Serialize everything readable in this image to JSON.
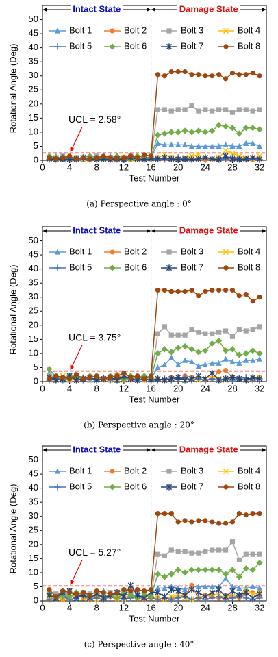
{
  "chart_data": [
    {
      "type": "line",
      "caption": "(a) Perspective angle : 0°",
      "xlabel": "Test Number",
      "ylabel": "Rotational Angle (Deg)",
      "intact_label": "Intact State",
      "damage_label": "Damage State",
      "state_boundary": 16,
      "ucl": 2.58,
      "ucl_label": "UCL = 2.58°",
      "xlim": [
        0,
        33
      ],
      "xticks": [
        0,
        4,
        8,
        12,
        16,
        20,
        24,
        28,
        32
      ],
      "ylim": [
        0,
        55
      ],
      "yticks": [
        0,
        5,
        10,
        15,
        20,
        25,
        30,
        35,
        40,
        45,
        50
      ],
      "x": [
        1,
        2,
        3,
        4,
        5,
        6,
        7,
        8,
        9,
        10,
        11,
        12,
        13,
        14,
        15,
        16,
        17,
        18,
        19,
        20,
        21,
        22,
        23,
        24,
        25,
        26,
        27,
        28,
        29,
        30,
        31,
        32
      ],
      "series": [
        {
          "name": "Bolt 1",
          "color": "#5b9bd5",
          "marker": "triangle",
          "values": [
            1,
            1.5,
            0.5,
            1,
            0.5,
            0.3,
            1,
            0.5,
            1,
            1.5,
            0.5,
            1,
            1.5,
            1,
            0.5,
            1,
            6,
            5.5,
            5.5,
            5.5,
            5.5,
            5,
            5,
            5,
            5,
            5,
            5.5,
            5,
            5,
            6,
            6,
            5
          ]
        },
        {
          "name": "Bolt 2",
          "color": "#ed7d31",
          "marker": "circle",
          "values": [
            0.5,
            1,
            0.3,
            0.5,
            1,
            0.5,
            0.3,
            1,
            0.5,
            0.3,
            1,
            0.5,
            0.3,
            0.5,
            1,
            0.5,
            1,
            0.5,
            1,
            0.5,
            0.3,
            1,
            0.5,
            0.3,
            0.5,
            1,
            0.5,
            0.3,
            1,
            0.5,
            0.3,
            0.5
          ]
        },
        {
          "name": "Bolt 3",
          "color": "#a5a5a5",
          "marker": "square",
          "values": [
            1,
            0.5,
            1.5,
            0.5,
            1,
            0.5,
            1,
            1.5,
            0.5,
            1,
            0.5,
            1,
            1.5,
            1,
            0.5,
            1.5,
            18,
            18,
            17.5,
            18,
            18,
            19.5,
            17.5,
            18,
            17.5,
            18,
            18,
            17,
            18,
            18,
            17.5,
            18
          ]
        },
        {
          "name": "Bolt 4",
          "color": "#ffc000",
          "marker": "x",
          "values": [
            0.5,
            1,
            0.5,
            1,
            0.3,
            0.5,
            1,
            0.5,
            0.3,
            1,
            0.5,
            1,
            0.5,
            0.3,
            1,
            0.5,
            1,
            2,
            1,
            0.5,
            1,
            1.5,
            2,
            1,
            0.5,
            1,
            3.5,
            2.5,
            1.5,
            1,
            0.5,
            1.5
          ]
        },
        {
          "name": "Bolt 5",
          "color": "#4472c4",
          "marker": "plus",
          "values": [
            0.3,
            0.5,
            1,
            0.5,
            0.3,
            0.5,
            0.3,
            0.5,
            1,
            0.5,
            0.3,
            0.5,
            1,
            0.5,
            0.3,
            0.5,
            0.5,
            0.3,
            0.5,
            1,
            0.5,
            0.3,
            0.5,
            1,
            0.5,
            0.3,
            0.5,
            1,
            0.5,
            0.3,
            0.5,
            0.3
          ]
        },
        {
          "name": "Bolt 6",
          "color": "#70ad47",
          "marker": "diamond",
          "values": [
            1.5,
            1,
            0.5,
            1,
            0.5,
            1,
            1.5,
            1,
            0.5,
            1,
            1.5,
            1,
            0.5,
            1.5,
            1,
            1,
            9,
            9.5,
            10,
            10,
            10.5,
            10,
            10.5,
            10,
            10.5,
            12.5,
            12,
            11.5,
            9.5,
            11.5,
            11.5,
            11
          ]
        },
        {
          "name": "Bolt 7",
          "color": "#264478",
          "marker": "asterisk",
          "values": [
            0.5,
            0.3,
            0.5,
            0.3,
            0.5,
            1,
            0.5,
            0.3,
            0.5,
            0.3,
            0.5,
            0.3,
            1,
            0.5,
            0.3,
            0.5,
            0.5,
            1,
            0.5,
            0.3,
            0.5,
            0.3,
            0.5,
            1,
            0.5,
            0.3,
            1.5,
            0.5,
            0.3,
            0.5,
            1,
            0.5
          ]
        },
        {
          "name": "Bolt 8",
          "color": "#9e480e",
          "marker": "circle",
          "values": [
            1,
            0.5,
            1,
            1.5,
            0.5,
            1,
            0.5,
            1,
            1.5,
            1,
            0.5,
            1,
            1.5,
            1,
            2,
            1.5,
            30.5,
            30,
            31.5,
            31.5,
            31.5,
            30.5,
            30.5,
            30,
            30,
            30.5,
            29,
            31,
            30.5,
            30.5,
            31,
            30
          ]
        }
      ]
    },
    {
      "type": "line",
      "caption": "(b) Perspective angle : 20°",
      "xlabel": "Test Number",
      "ylabel": "Rotational Angle (Deg)",
      "intact_label": "Intact State",
      "damage_label": "Damage State",
      "state_boundary": 16,
      "ucl": 3.75,
      "ucl_label": "UCL = 3.75°",
      "xlim": [
        0,
        33
      ],
      "xticks": [
        0,
        4,
        8,
        12,
        16,
        20,
        24,
        28,
        32
      ],
      "ylim": [
        0,
        55
      ],
      "yticks": [
        0,
        5,
        10,
        15,
        20,
        25,
        30,
        35,
        40,
        45,
        50
      ],
      "x": [
        1,
        2,
        3,
        4,
        5,
        6,
        7,
        8,
        9,
        10,
        11,
        12,
        13,
        14,
        15,
        16,
        17,
        18,
        19,
        20,
        21,
        22,
        23,
        24,
        25,
        26,
        27,
        28,
        29,
        30,
        31,
        32
      ],
      "series": [
        {
          "name": "Bolt 1",
          "color": "#5b9bd5",
          "marker": "triangle",
          "values": [
            3,
            1.5,
            0.5,
            1,
            2,
            1.5,
            0.5,
            1,
            1.5,
            1,
            0.5,
            1,
            1.5,
            1,
            2,
            1,
            5,
            6,
            8.5,
            6,
            7.5,
            7,
            5.5,
            6,
            6.5,
            6.5,
            8,
            7,
            6.5,
            7.5,
            7.5,
            8
          ]
        },
        {
          "name": "Bolt 2",
          "color": "#ed7d31",
          "marker": "circle",
          "values": [
            1,
            0.5,
            1.5,
            1,
            0.5,
            1,
            0.5,
            1,
            0.5,
            1,
            2.5,
            1,
            0.5,
            1,
            0.5,
            1,
            1,
            0.5,
            1.5,
            1,
            2,
            1.5,
            1,
            0.5,
            1,
            3.5,
            4,
            1.5,
            1,
            0.5,
            1,
            1.5
          ]
        },
        {
          "name": "Bolt 3",
          "color": "#a5a5a5",
          "marker": "square",
          "values": [
            2,
            1.5,
            1,
            0.5,
            2,
            1,
            0.5,
            1.5,
            1,
            0.5,
            1,
            2,
            1,
            0.5,
            1,
            1.5,
            17,
            19.5,
            16.5,
            16.5,
            16.5,
            18.5,
            17.5,
            17,
            17,
            17.5,
            18,
            16,
            18.5,
            18,
            18.5,
            19.5
          ]
        },
        {
          "name": "Bolt 4",
          "color": "#ffc000",
          "marker": "x",
          "values": [
            1,
            0.5,
            2,
            1,
            0.5,
            1,
            1.5,
            0.5,
            1,
            0.5,
            1,
            0.5,
            1,
            1.5,
            0.5,
            1,
            1,
            0.5,
            1,
            1.5,
            0.5,
            1,
            0.5,
            1,
            2,
            1,
            0.5,
            1.5,
            1,
            0.5,
            1,
            1.5
          ]
        },
        {
          "name": "Bolt 5",
          "color": "#4472c4",
          "marker": "plus",
          "values": [
            0.5,
            1,
            0.5,
            1.5,
            1,
            0.5,
            1,
            0.5,
            1,
            0.5,
            1,
            1.5,
            1,
            0.5,
            1,
            0.5,
            0.5,
            1,
            0.5,
            1,
            1.5,
            0.5,
            1,
            0.5,
            1,
            0.5,
            1,
            0.5,
            1,
            1.5,
            0.5,
            1
          ]
        },
        {
          "name": "Bolt 6",
          "color": "#70ad47",
          "marker": "diamond",
          "values": [
            4.5,
            1.5,
            1,
            2,
            1.5,
            1,
            2,
            1.5,
            1,
            2,
            1.5,
            1,
            2,
            1.5,
            2,
            1.5,
            10,
            11.5,
            10.5,
            12,
            12.5,
            11.5,
            10.5,
            11,
            13.5,
            14.5,
            11,
            11.5,
            9.5,
            10,
            11,
            10
          ]
        },
        {
          "name": "Bolt 7",
          "color": "#264478",
          "marker": "asterisk",
          "values": [
            1.5,
            0.5,
            1,
            2,
            0.5,
            1,
            1.5,
            0.5,
            1,
            1.5,
            0.5,
            2,
            1,
            0.5,
            1,
            0.5,
            1,
            0.5,
            1,
            1.5,
            0.5,
            1,
            2,
            1,
            3,
            0.5,
            1,
            1.5,
            1,
            0.5,
            1.5,
            1
          ]
        },
        {
          "name": "Bolt 8",
          "color": "#9e480e",
          "marker": "circle",
          "values": [
            1,
            2,
            1.5,
            1,
            2.5,
            1,
            1.5,
            2,
            1,
            1.5,
            2,
            3,
            1.5,
            2,
            1,
            2,
            32.5,
            32.5,
            32,
            32,
            32,
            32.5,
            30.5,
            32,
            32.5,
            32.5,
            32.5,
            32.5,
            30.5,
            31,
            28.5,
            30
          ]
        }
      ]
    },
    {
      "type": "line",
      "caption": "(c) Perspective angle : 40°",
      "xlabel": "Test Number",
      "ylabel": "Rotational Angle (Deg)",
      "intact_label": "Intact State",
      "damage_label": "Damage State",
      "state_boundary": 16,
      "ucl": 5.27,
      "ucl_label": "UCL = 5.27°",
      "xlim": [
        0,
        33
      ],
      "xticks": [
        0,
        4,
        8,
        12,
        16,
        20,
        24,
        28,
        32
      ],
      "ylim": [
        0,
        55
      ],
      "yticks": [
        0,
        5,
        10,
        15,
        20,
        25,
        30,
        35,
        40,
        45,
        50
      ],
      "x": [
        1,
        2,
        3,
        4,
        5,
        6,
        7,
        8,
        9,
        10,
        11,
        12,
        13,
        14,
        15,
        16,
        17,
        18,
        19,
        20,
        21,
        22,
        23,
        24,
        25,
        26,
        27,
        28,
        29,
        30,
        31,
        32
      ],
      "series": [
        {
          "name": "Bolt 1",
          "color": "#5b9bd5",
          "marker": "triangle",
          "values": [
            2,
            1.5,
            3,
            2,
            1,
            2.5,
            1.5,
            2,
            3.5,
            2,
            1.5,
            2,
            2.5,
            1.5,
            2,
            2.5,
            4.5,
            4.5,
            5,
            4.5,
            4,
            5,
            5,
            5,
            5,
            5,
            8,
            5,
            4.5,
            4.5,
            5,
            4.5
          ]
        },
        {
          "name": "Bolt 2",
          "color": "#ed7d31",
          "marker": "circle",
          "values": [
            1,
            2,
            0.5,
            1.5,
            2,
            1,
            0.5,
            2,
            1,
            1.5,
            0.5,
            1,
            2,
            1,
            0.5,
            1,
            1,
            0.5,
            1,
            1.5,
            2,
            5.5,
            1,
            2,
            1.5,
            1,
            2,
            1.5,
            1,
            2.5,
            3,
            2
          ]
        },
        {
          "name": "Bolt 3",
          "color": "#a5a5a5",
          "marker": "square",
          "values": [
            3,
            2.5,
            3,
            3.5,
            2,
            3,
            2.5,
            3,
            2.5,
            3,
            2,
            3.5,
            2.5,
            3,
            2.5,
            2,
            16.5,
            16,
            18,
            17.5,
            17.5,
            17,
            17,
            17.5,
            18,
            18,
            18,
            21,
            14.5,
            16.5,
            16.5,
            16.5
          ]
        },
        {
          "name": "Bolt 4",
          "color": "#ffc000",
          "marker": "x",
          "values": [
            1,
            1.5,
            0.5,
            1,
            2,
            1,
            1.5,
            0.5,
            1,
            2,
            1,
            0.5,
            1.5,
            1,
            2,
            1,
            1,
            0.5,
            1.5,
            2,
            1,
            0.5,
            1,
            1.5,
            2.5,
            2,
            1,
            1.5,
            2,
            4,
            2.5,
            3
          ]
        },
        {
          "name": "Bolt 5",
          "color": "#4472c4",
          "marker": "plus",
          "values": [
            0.5,
            1,
            1.5,
            0.5,
            1,
            2,
            0.5,
            1,
            0.5,
            1.5,
            1,
            0.5,
            1,
            2,
            0.5,
            1,
            0.5,
            1,
            0.5,
            1,
            1.5,
            0.5,
            1,
            0.5,
            1,
            1.5,
            0.5,
            1,
            2,
            1,
            0.5,
            1
          ]
        },
        {
          "name": "Bolt 6",
          "color": "#70ad47",
          "marker": "diamond",
          "values": [
            2.5,
            1,
            2,
            1.5,
            3,
            2,
            1,
            2.5,
            1.5,
            2,
            1,
            2.5,
            2,
            1,
            2,
            1.5,
            9.5,
            8.5,
            9.5,
            11,
            10,
            11,
            11,
            11,
            11,
            11,
            9.5,
            11,
            8.5,
            11.5,
            11,
            13.5
          ]
        },
        {
          "name": "Bolt 7",
          "color": "#264478",
          "marker": "asterisk",
          "values": [
            2,
            1,
            3,
            3.5,
            1.5,
            2,
            1,
            2.5,
            1,
            2,
            3,
            1.5,
            5.5,
            2,
            1,
            3,
            3,
            1.5,
            4,
            3.5,
            2,
            4,
            3,
            1.5,
            3,
            4,
            1.5,
            3.5,
            2,
            3,
            1,
            2.5
          ]
        },
        {
          "name": "Bolt 8",
          "color": "#9e480e",
          "marker": "circle",
          "values": [
            4,
            1.5,
            3.5,
            3,
            2.5,
            3,
            2,
            3.5,
            3,
            2.5,
            3,
            4,
            3.5,
            4,
            3.5,
            4,
            31,
            31,
            31,
            28,
            28.5,
            28,
            28.5,
            28.5,
            28,
            27.5,
            27.5,
            28,
            31,
            30.5,
            31,
            31
          ]
        }
      ]
    }
  ]
}
